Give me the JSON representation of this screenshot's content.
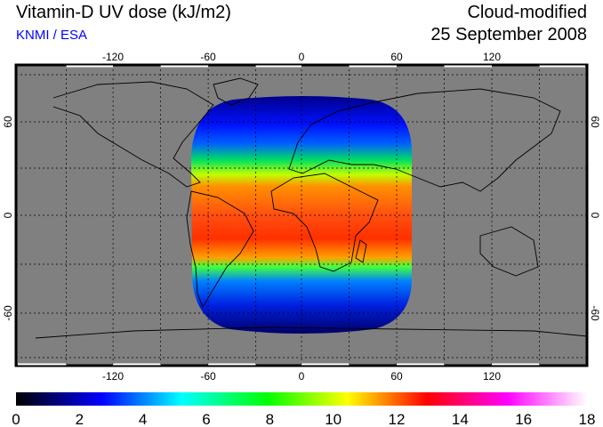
{
  "header": {
    "title": "Vitamin-D UV dose (kJ/m2)",
    "organization": "KNMI / ESA",
    "mode": "Cloud-modified",
    "date": "25 September 2008"
  },
  "map": {
    "lon_ticks": [
      "-120",
      "-60",
      "0",
      "60",
      "120"
    ],
    "lat_ticks": [
      "60",
      "0",
      "-60"
    ],
    "background_color": "#808080"
  },
  "colorbar": {
    "labels": [
      "0",
      "2",
      "4",
      "6",
      "8",
      "10",
      "12",
      "14",
      "16",
      "18"
    ],
    "colors": [
      "#000000",
      "#0000ff",
      "#00ffff",
      "#00ff00",
      "#ffff00",
      "#ff0000",
      "#ff00ff",
      "#ffffff"
    ]
  }
}
